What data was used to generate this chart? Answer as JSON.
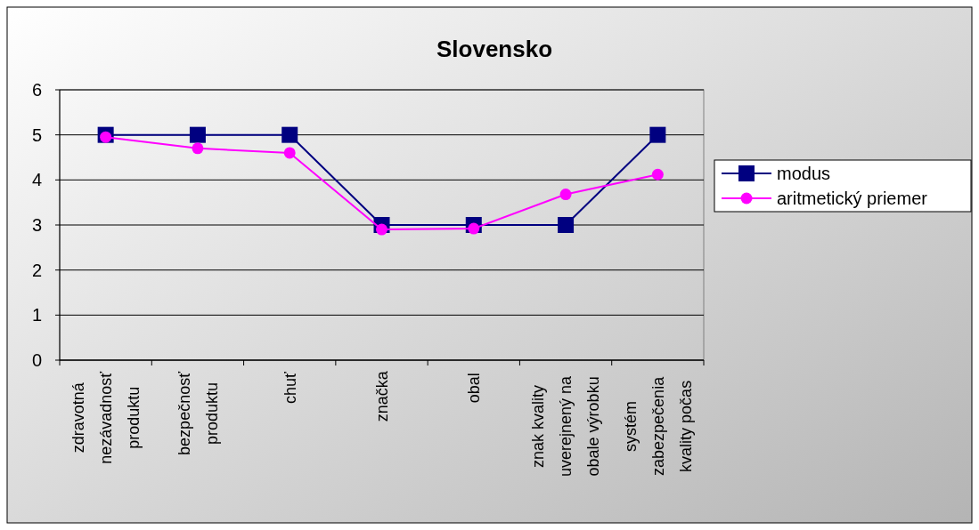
{
  "chart_data": {
    "type": "line",
    "title": "Slovensko",
    "categories": [
      "zdravotná\nnezávadnosť\nproduktu",
      "bezpečnosť\nproduktu",
      "chuť",
      "značka",
      "obal",
      "znak kvality\nuverejnený na\nobale výrobku",
      "systém\nzabezpečenia\nkvality počas"
    ],
    "series": [
      {
        "name": "modus",
        "color": "#000080",
        "marker": "square",
        "values": [
          5,
          5,
          5,
          3,
          3,
          3,
          5
        ]
      },
      {
        "name": "aritmetický priemer",
        "color": "#ff00ff",
        "marker": "circle",
        "values": [
          4.95,
          4.7,
          4.6,
          2.9,
          2.92,
          3.68,
          4.12
        ]
      }
    ],
    "ylim": [
      0,
      6
    ],
    "yticks": [
      0,
      1,
      2,
      3,
      4,
      5,
      6
    ],
    "grid": "y",
    "legend": "right"
  }
}
